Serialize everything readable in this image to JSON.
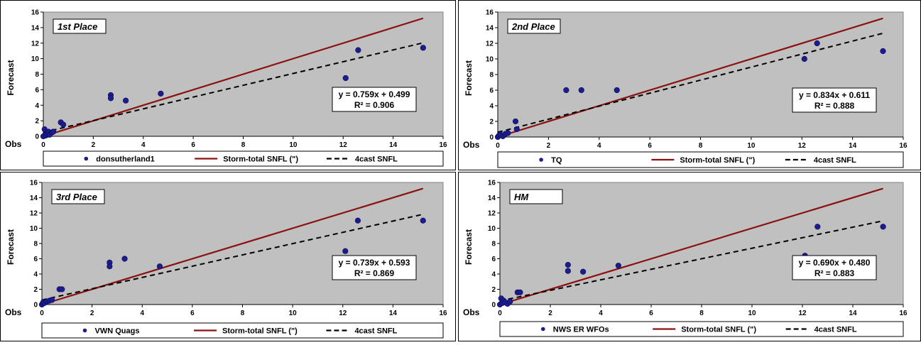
{
  "chart_data": [
    {
      "type": "scatter",
      "title": "1st Place",
      "xlabel": "Obs",
      "ylabel": "Forecast",
      "xlim": [
        0,
        16
      ],
      "ylim": [
        0,
        16
      ],
      "xticks": [
        "0",
        "2",
        "4",
        "6",
        "8",
        "10",
        "12",
        "14",
        "16"
      ],
      "yticks": [
        "0",
        "2",
        "4",
        "6",
        "8",
        "10",
        "12",
        "14",
        "16"
      ],
      "grid": "none",
      "legend": "bottom",
      "equation": "y = 0.759x + 0.499",
      "r2": "R² = 0.906",
      "series": [
        {
          "name": "donsutherland1",
          "kind": "points",
          "color": "#1c1c8c",
          "x": [
            0.0,
            0.05,
            0.1,
            0.15,
            0.2,
            0.25,
            0.35,
            0.4,
            0.7,
            0.8,
            2.7,
            2.7,
            3.3,
            4.7,
            12.1,
            12.6,
            15.2
          ],
          "y": [
            0.0,
            0.9,
            0.1,
            0.3,
            0.6,
            0.2,
            0.5,
            0.6,
            1.8,
            1.5,
            5.3,
            4.9,
            4.6,
            5.5,
            7.5,
            11.1,
            11.4
          ]
        },
        {
          "name": "Storm-total SNFL (\")",
          "kind": "line",
          "color": "#8b1010",
          "slope": 1,
          "intercept": 0,
          "xrange": [
            0,
            15.2
          ]
        },
        {
          "name": "4cast SNFL",
          "kind": "dashed",
          "color": "#000000",
          "slope": 0.759,
          "intercept": 0.499,
          "xrange": [
            0,
            15.2
          ]
        }
      ]
    },
    {
      "type": "scatter",
      "title": "2nd Place",
      "xlabel": "Obs",
      "ylabel": "Forecast",
      "xlim": [
        0,
        16
      ],
      "ylim": [
        0,
        16
      ],
      "xticks": [
        "0",
        "2",
        "4",
        "6",
        "8",
        "10",
        "12",
        "14",
        "16"
      ],
      "yticks": [
        "0",
        "2",
        "4",
        "6",
        "8",
        "10",
        "12",
        "14",
        "16"
      ],
      "grid": "none",
      "legend": "bottom",
      "equation": "y = 0.834x + 0.611",
      "r2": "R² = 0.888",
      "series": [
        {
          "name": "TQ",
          "kind": "points",
          "color": "#1c1c8c",
          "x": [
            0.0,
            0.05,
            0.1,
            0.2,
            0.3,
            0.4,
            0.7,
            0.75,
            2.7,
            3.3,
            4.7,
            12.1,
            12.6,
            15.2
          ],
          "y": [
            0.0,
            0.2,
            0.3,
            0.1,
            0.4,
            0.5,
            2.0,
            1.0,
            6.0,
            6.0,
            6.0,
            10.0,
            12.0,
            11.0
          ]
        },
        {
          "name": "Storm-total SNFL (\")",
          "kind": "line",
          "color": "#8b1010",
          "slope": 1,
          "intercept": 0,
          "xrange": [
            0,
            15.2
          ]
        },
        {
          "name": "4cast SNFL",
          "kind": "dashed",
          "color": "#000000",
          "slope": 0.834,
          "intercept": 0.611,
          "xrange": [
            0,
            15.2
          ]
        }
      ]
    },
    {
      "type": "scatter",
      "title": "3rd Place",
      "xlabel": "Obs",
      "ylabel": "Forecast",
      "xlim": [
        0,
        16
      ],
      "ylim": [
        0,
        16
      ],
      "xticks": [
        "0",
        "2",
        "4",
        "6",
        "8",
        "10",
        "12",
        "14",
        "16"
      ],
      "yticks": [
        "0",
        "2",
        "4",
        "6",
        "8",
        "10",
        "12",
        "14",
        "16"
      ],
      "grid": "none",
      "legend": "bottom",
      "equation": "y = 0.739x + 0.593",
      "r2": "R² = 0.869",
      "series": [
        {
          "name": "VWN Quags",
          "kind": "points",
          "color": "#1c1c8c",
          "x": [
            0.0,
            0.05,
            0.1,
            0.2,
            0.3,
            0.4,
            0.7,
            0.8,
            2.7,
            2.7,
            3.3,
            4.7,
            12.1,
            12.6,
            15.2
          ],
          "y": [
            0.0,
            0.3,
            0.2,
            0.4,
            0.5,
            0.6,
            2.0,
            2.0,
            5.5,
            5.0,
            6.0,
            5.0,
            7.0,
            11.0,
            11.0
          ]
        },
        {
          "name": "Storm-total SNFL (\")",
          "kind": "line",
          "color": "#8b1010",
          "slope": 1,
          "intercept": 0,
          "xrange": [
            0,
            15.2
          ]
        },
        {
          "name": "4cast SNFL",
          "kind": "dashed",
          "color": "#000000",
          "slope": 0.739,
          "intercept": 0.593,
          "xrange": [
            0,
            15.2
          ]
        }
      ]
    },
    {
      "type": "scatter",
      "title": "HM",
      "xlabel": "Obs",
      "ylabel": "Forecast",
      "xlim": [
        0,
        16
      ],
      "ylim": [
        0,
        16
      ],
      "xticks": [
        "0",
        "2",
        "4",
        "6",
        "8",
        "10",
        "12",
        "14",
        "16"
      ],
      "yticks": [
        "0",
        "2",
        "4",
        "6",
        "8",
        "10",
        "12",
        "14",
        "16"
      ],
      "grid": "none",
      "legend": "bottom",
      "equation": "y = 0.690x + 0.480",
      "r2": "R² = 0.883",
      "series": [
        {
          "name": "NWS ER WFOs",
          "kind": "points",
          "color": "#1c1c8c",
          "x": [
            0.0,
            0.05,
            0.1,
            0.15,
            0.2,
            0.3,
            0.4,
            0.7,
            0.8,
            2.7,
            2.7,
            3.3,
            4.7,
            12.1,
            12.6,
            15.2
          ],
          "y": [
            0.0,
            0.8,
            0.2,
            0.5,
            0.3,
            0.1,
            0.4,
            1.6,
            1.6,
            5.2,
            4.4,
            4.3,
            5.1,
            6.4,
            10.2,
            10.2
          ]
        },
        {
          "name": "Storm-total SNFL (\")",
          "kind": "line",
          "color": "#8b1010",
          "slope": 1,
          "intercept": 0,
          "xrange": [
            0,
            15.2
          ]
        },
        {
          "name": "4cast SNFL",
          "kind": "dashed",
          "color": "#000000",
          "slope": 0.69,
          "intercept": 0.48,
          "xrange": [
            0,
            15.2
          ]
        }
      ]
    }
  ]
}
